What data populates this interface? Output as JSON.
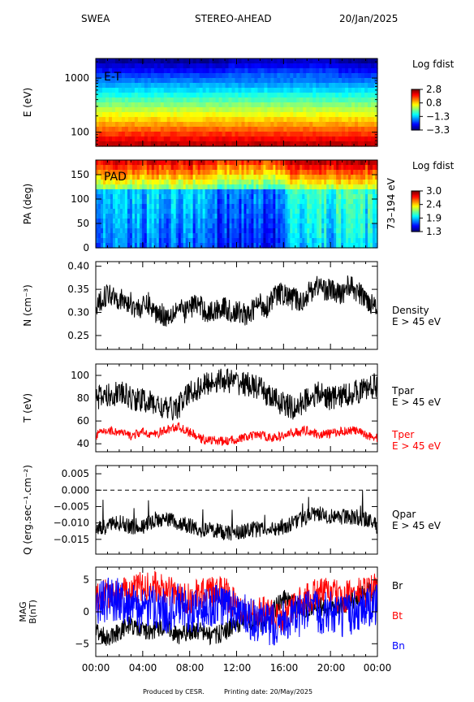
{
  "header": {
    "instrument": "SWEA",
    "spacecraft": "STEREO-AHEAD",
    "date": "20/Jan/2025"
  },
  "footer": {
    "credit": "Produced by CESR.",
    "printing": "Printing date: 20/May/2025"
  },
  "x_axis": {
    "tick_labels": [
      "00:00",
      "04:00",
      "08:00",
      "12:00",
      "16:00",
      "20:00",
      "00:00"
    ],
    "range_hours": [
      0,
      24
    ]
  },
  "colors": {
    "black": "#000000",
    "red": "#ff0000",
    "blue": "#0000ff"
  },
  "chart_data": [
    {
      "id": "energy",
      "type": "heatmap",
      "ylabel": "E (eV)",
      "scale": "log",
      "ylim": [
        55,
        2300
      ],
      "yticks": [
        100,
        1000
      ],
      "ytick_labels": [
        "100",
        "1000"
      ],
      "annotation": "E-T",
      "colorbar": {
        "title": "Log fdist",
        "tick_labels": [
          "2.8",
          "0.8",
          "−1.3",
          "−3.3"
        ]
      }
    },
    {
      "id": "pad",
      "type": "heatmap",
      "ylabel": "PA (deg)",
      "ylim": [
        0,
        180
      ],
      "yticks": [
        0,
        50,
        100,
        150
      ],
      "ytick_labels": [
        "0",
        "50",
        "100",
        "150"
      ],
      "annotation": "PAD",
      "right_label": "73–194 eV",
      "colorbar": {
        "title": "Log fdist",
        "tick_labels": [
          "3.0",
          "2.4",
          "1.9",
          "1.3"
        ]
      }
    },
    {
      "id": "density",
      "type": "line",
      "ylabel": "N (cm⁻³)",
      "ylim": [
        0.22,
        0.41
      ],
      "yticks": [
        0.25,
        0.3,
        0.35,
        0.4
      ],
      "ytick_labels": [
        "0.25",
        "0.30",
        "0.35",
        "0.40"
      ],
      "series": [
        {
          "name": "Density",
          "sub": "E > 45 eV",
          "color": "#000000",
          "x": [
            0,
            0.5,
            1,
            1.5,
            2,
            2.5,
            3,
            3.5,
            4,
            4.5,
            5,
            5.5,
            6,
            6.5,
            7,
            7.5,
            8,
            8.5,
            9,
            9.5,
            10,
            10.5,
            11,
            11.5,
            12,
            12.5,
            13,
            13.5,
            14,
            14.5,
            15,
            15.5,
            16,
            16.5,
            17,
            17.5,
            18,
            18.5,
            19,
            19.5,
            20,
            20.5,
            21,
            21.5,
            22,
            22.5,
            23,
            23.5,
            24
          ],
          "y": [
            0.3,
            0.33,
            0.34,
            0.34,
            0.33,
            0.32,
            0.32,
            0.31,
            0.31,
            0.32,
            0.3,
            0.3,
            0.29,
            0.3,
            0.31,
            0.3,
            0.31,
            0.32,
            0.31,
            0.3,
            0.3,
            0.31,
            0.31,
            0.3,
            0.3,
            0.3,
            0.29,
            0.31,
            0.32,
            0.31,
            0.33,
            0.34,
            0.34,
            0.33,
            0.33,
            0.32,
            0.34,
            0.35,
            0.36,
            0.35,
            0.35,
            0.34,
            0.34,
            0.36,
            0.35,
            0.34,
            0.33,
            0.32,
            0.32
          ],
          "amp": 0.025
        }
      ]
    },
    {
      "id": "temperature",
      "type": "line",
      "ylabel": "T (eV)",
      "ylim": [
        33,
        110
      ],
      "yticks": [
        40,
        60,
        80,
        100
      ],
      "ytick_labels": [
        "40",
        "60",
        "80",
        "100"
      ],
      "series": [
        {
          "name": "Tpar",
          "sub": "E > 45 eV",
          "color": "#000000",
          "x": [
            0,
            1,
            2,
            3,
            4,
            5,
            6,
            7,
            8,
            9,
            10,
            11,
            12,
            13,
            14,
            15,
            16,
            17,
            18,
            19,
            20,
            21,
            22,
            23,
            24
          ],
          "y": [
            80,
            82,
            85,
            80,
            78,
            75,
            70,
            72,
            85,
            90,
            95,
            96,
            94,
            92,
            88,
            80,
            75,
            70,
            80,
            84,
            80,
            82,
            85,
            88,
            92
          ],
          "amp": 11
        },
        {
          "name": "Tper",
          "sub": "E > 45 eV",
          "color": "#ff0000",
          "x": [
            0,
            1,
            2,
            3,
            4,
            5,
            6,
            7,
            8,
            9,
            10,
            11,
            12,
            13,
            14,
            15,
            16,
            17,
            18,
            19,
            20,
            21,
            22,
            23,
            24
          ],
          "y": [
            48,
            52,
            50,
            47,
            50,
            48,
            52,
            55,
            50,
            44,
            43,
            42,
            44,
            46,
            48,
            45,
            47,
            50,
            52,
            48,
            49,
            51,
            52,
            48,
            45
          ],
          "amp": 4
        }
      ]
    },
    {
      "id": "heatflux",
      "type": "line",
      "ylabel": "Q (erg.sec⁻¹.cm⁻²)",
      "ylim": [
        -0.0195,
        0.0075
      ],
      "yticks": [
        -0.015,
        -0.01,
        -0.005,
        0.0,
        0.005
      ],
      "ytick_labels": [
        "−0.015",
        "−0.010",
        "−0.005",
        "0.000",
        "0.005"
      ],
      "zero_line": true,
      "series": [
        {
          "name": "Qpar",
          "sub": "E > 45 eV",
          "color": "#000000",
          "x": [
            0,
            1,
            2,
            3,
            4,
            5,
            6,
            7,
            8,
            9,
            10,
            11,
            12,
            13,
            14,
            15,
            16,
            17,
            18,
            19,
            20,
            21,
            22,
            23,
            24
          ],
          "y": [
            -0.012,
            -0.011,
            -0.01,
            -0.011,
            -0.011,
            -0.009,
            -0.009,
            -0.01,
            -0.011,
            -0.012,
            -0.012,
            -0.013,
            -0.013,
            -0.012,
            -0.012,
            -0.012,
            -0.011,
            -0.01,
            -0.008,
            -0.007,
            -0.008,
            -0.008,
            -0.008,
            -0.009,
            -0.011
          ],
          "amp": 0.0025
        }
      ]
    },
    {
      "id": "mag",
      "type": "line",
      "ylabel": "MAG B(nT)",
      "ylim": [
        -7,
        7
      ],
      "yticks": [
        -5,
        0,
        5
      ],
      "ytick_labels": [
        "−5",
        "0",
        "5"
      ],
      "series": [
        {
          "name": "Br",
          "color": "#000000",
          "x": [
            0,
            1,
            2,
            3,
            4,
            5,
            6,
            7,
            8,
            9,
            10,
            11,
            12,
            13,
            14,
            15,
            16,
            17,
            18,
            19,
            20,
            21,
            22,
            23,
            24
          ],
          "y": [
            -3,
            -4,
            -3,
            -2,
            -3,
            -3,
            -2,
            -4,
            -3,
            -3,
            -4,
            -3,
            -2,
            -1,
            -2,
            0,
            2,
            1,
            0,
            1,
            0,
            1,
            2,
            3,
            4
          ],
          "amp": 1.5
        },
        {
          "name": "Bt",
          "color": "#ff0000",
          "x": [
            0,
            1,
            2,
            3,
            4,
            5,
            6,
            7,
            8,
            9,
            10,
            11,
            12,
            13,
            14,
            15,
            16,
            17,
            18,
            19,
            20,
            21,
            22,
            23,
            24
          ],
          "y": [
            2,
            3,
            3,
            3,
            4,
            4,
            3,
            3,
            2,
            3,
            3,
            3,
            1,
            0,
            0,
            0,
            -1,
            1,
            2,
            3,
            3,
            2,
            3,
            3,
            4
          ],
          "amp": 2.5
        },
        {
          "name": "Bn",
          "color": "#0000ff",
          "x": [
            0,
            1,
            2,
            3,
            4,
            5,
            6,
            7,
            8,
            9,
            10,
            11,
            12,
            13,
            14,
            15,
            16,
            17,
            18,
            19,
            20,
            21,
            22,
            23,
            24
          ],
          "y": [
            1,
            2,
            2,
            1,
            0,
            1,
            0,
            1,
            0,
            0,
            1,
            1,
            0,
            -1,
            -2,
            -2,
            -1,
            -1,
            0,
            0,
            0,
            -1,
            0,
            1,
            1
          ],
          "amp": 3.5
        }
      ]
    }
  ]
}
